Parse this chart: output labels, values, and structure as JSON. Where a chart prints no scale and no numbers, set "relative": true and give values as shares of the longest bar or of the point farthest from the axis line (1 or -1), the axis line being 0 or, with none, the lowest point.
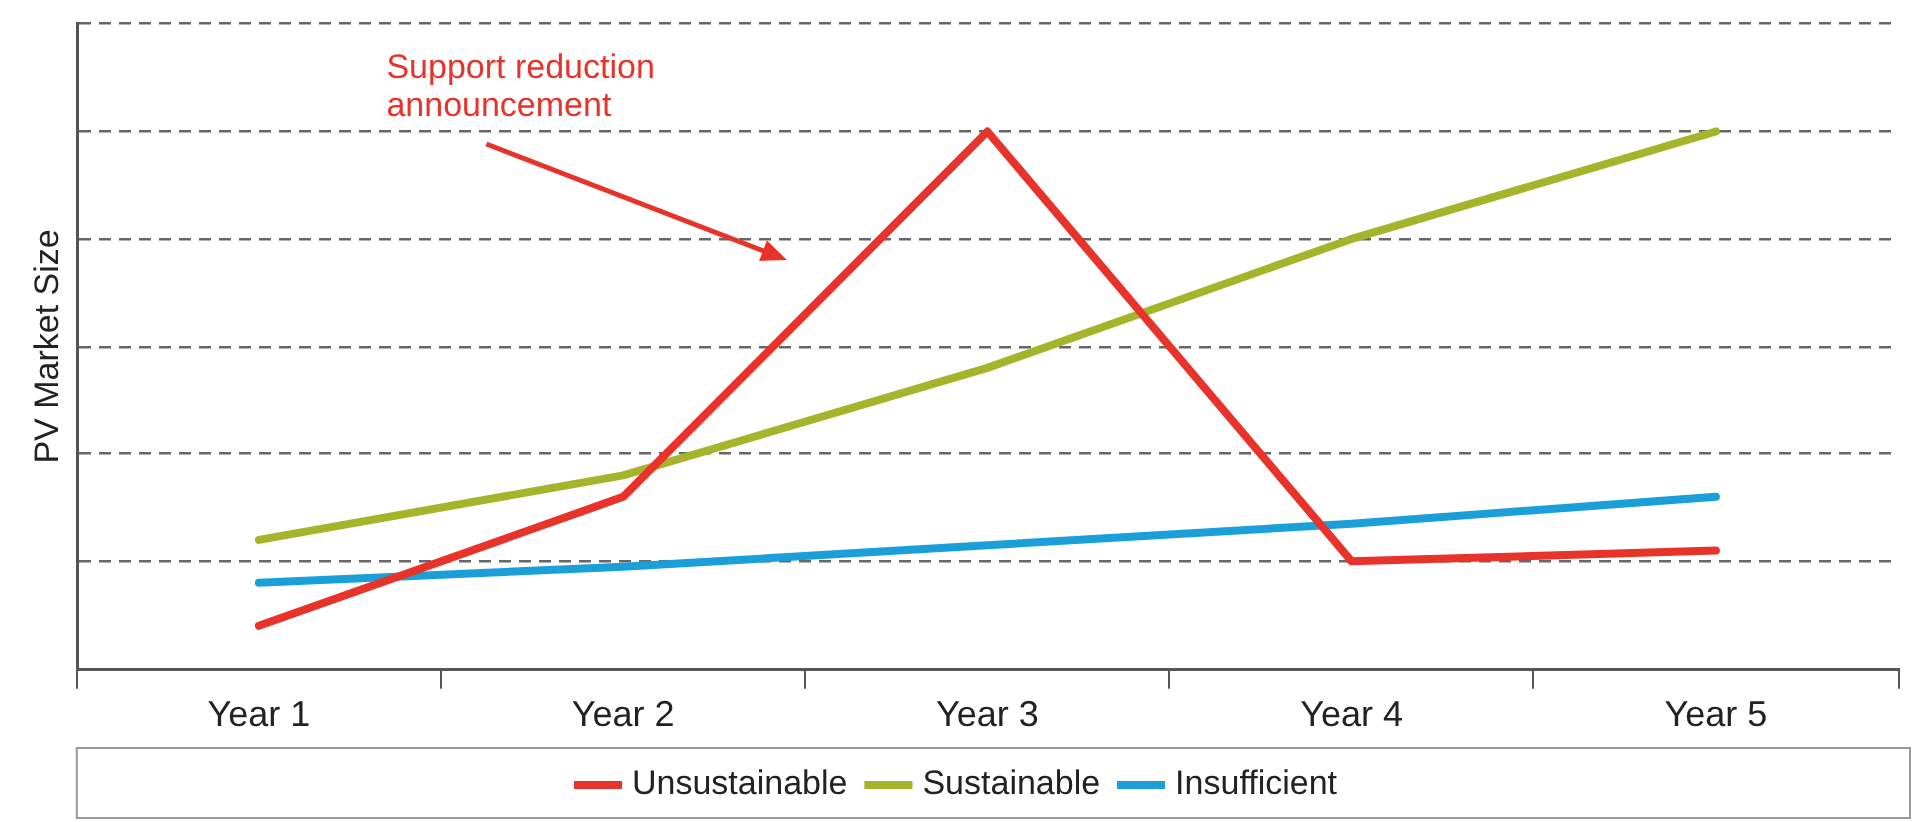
{
  "chart_data": {
    "type": "line",
    "ylabel": "PV Market Size",
    "categories": [
      "Year 1",
      "Year 2",
      "Year 3",
      "Year 4",
      "Year 5"
    ],
    "relative": true,
    "grid": "y",
    "legend": "bottom",
    "marker": "none",
    "line_style": "solid",
    "series": [
      {
        "name": "Unsustainable",
        "color": "#e8332a",
        "values": [
          0.08,
          0.32,
          1,
          0.2,
          0.22
        ]
      },
      {
        "name": "Sustainable",
        "color": "#a5b52b",
        "values": [
          0.24,
          0.36,
          0.56,
          0.8,
          1
        ]
      },
      {
        "name": "Insufficient",
        "color": "#1a9fd9",
        "values": [
          0.16,
          0.19,
          0.23,
          0.27,
          0.32
        ]
      }
    ],
    "annotations": [
      "Support reduction\nannouncement"
    ]
  }
}
